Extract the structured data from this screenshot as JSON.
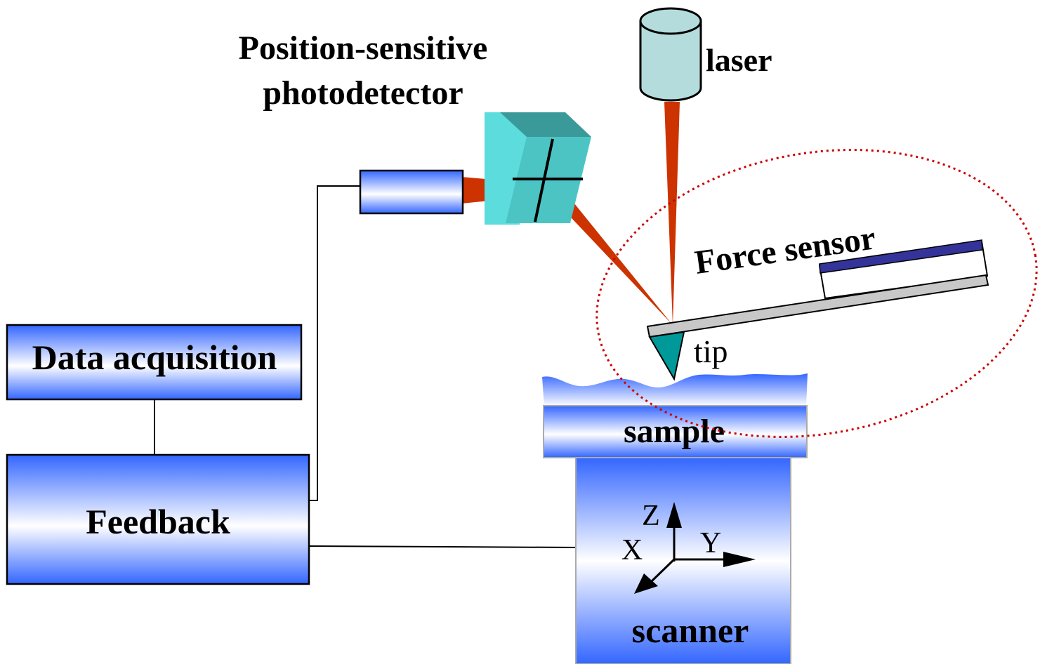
{
  "labels": {
    "photodetector_line1": "Position-sensitive",
    "photodetector_line2": "photodetector",
    "laser": "laser",
    "force_sensor": "Force sensor",
    "tip": "tip",
    "data_acquisition": "Data acquisition",
    "feedback": "Feedback",
    "sample": "sample",
    "scanner": "scanner",
    "axis_z": "Z",
    "axis_y": "Y",
    "axis_x": "X"
  },
  "colors": {
    "box_gradient_edge": "#3366ff",
    "box_gradient_center": "#ffffff",
    "laser_beam": "#cc3300",
    "laser_body": "#b4dcdc",
    "detector_face": "#5cdcdc",
    "detector_side": "#3aa8a8",
    "detector_top": "#3a9a9a",
    "cantilever": "#c8c8c8",
    "cantilever_top": "#333399",
    "tip": "#009999",
    "ellipse_dotted": "#cc0000"
  }
}
